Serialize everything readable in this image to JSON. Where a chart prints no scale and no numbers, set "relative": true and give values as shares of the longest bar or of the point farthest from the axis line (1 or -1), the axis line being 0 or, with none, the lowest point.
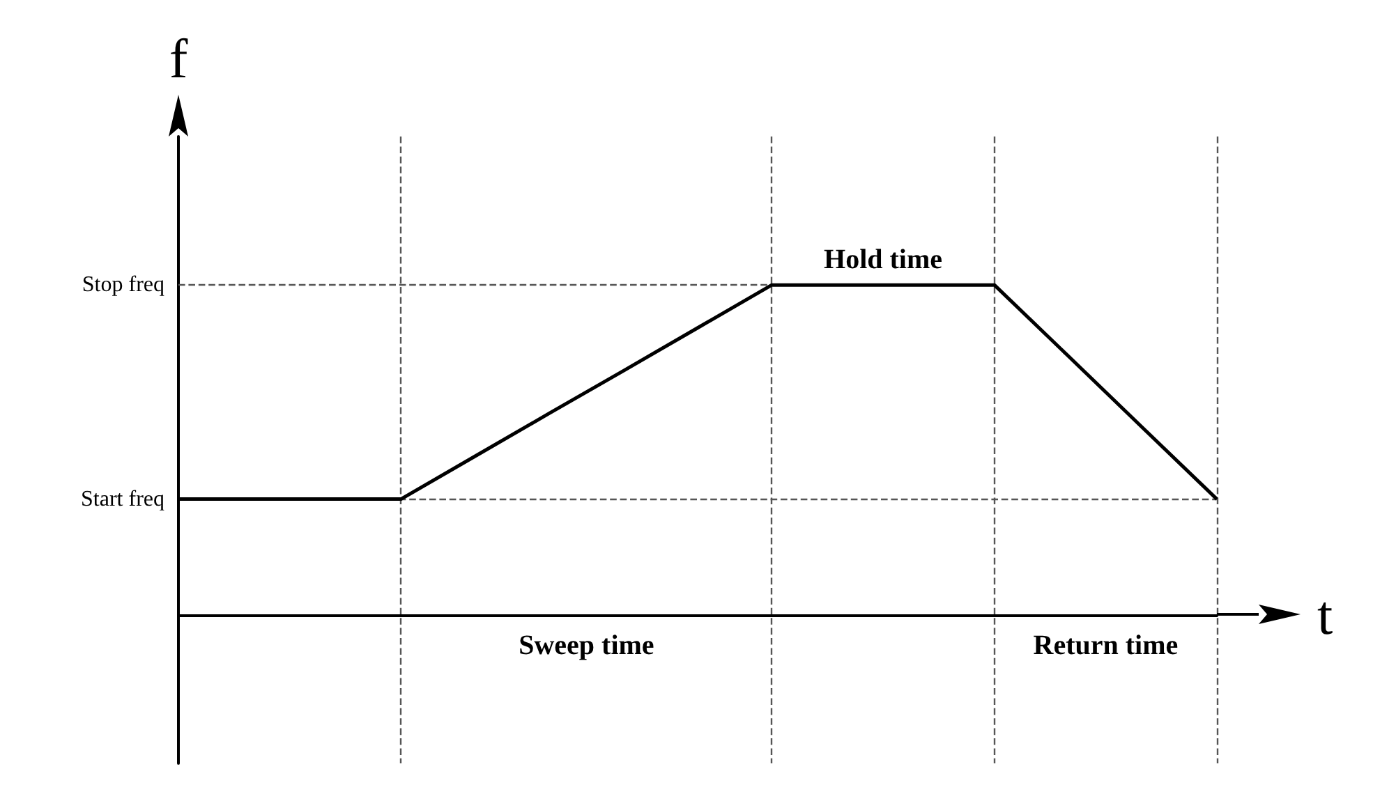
{
  "chart_data": {
    "type": "line",
    "relative": true,
    "xlabel": "t",
    "ylabel": "f",
    "categories": [
      null,
      null,
      null,
      null,
      null,
      null,
      null,
      null,
      null,
      null,
      null,
      null,
      null,
      null,
      null
    ],
    "series": [
      {
        "color": "#000000",
        "values": [
          0.351,
          0.351,
          0.351,
          0.351,
          0.481,
          0.611,
          0.74,
          0.87,
          1,
          1,
          1,
          1,
          0.784,
          0.567,
          0.351
        ]
      }
    ],
    "ref_lines": [
      {
        "axis": "y",
        "value": 0.351,
        "label": "Start freq",
        "line_style": "dashed",
        "color": "#555555"
      },
      {
        "axis": "y",
        "value": 1,
        "label": "Stop freq",
        "line_style": "dashed",
        "color": "#555555"
      }
    ],
    "annotations": [
      "Sweep time",
      "Hold time",
      "Return time"
    ],
    "grid": "x",
    "marker": "none",
    "line_style": "solid"
  }
}
